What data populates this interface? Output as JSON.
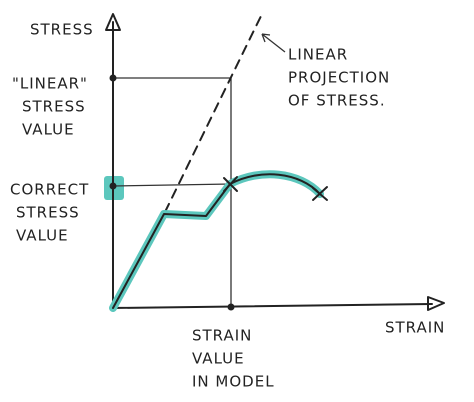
{
  "axes": {
    "y_label": "STRESS",
    "x_label": "STRAIN"
  },
  "labels": {
    "linear_stress": {
      "lines": [
        "\"LINEAR\"",
        "STRESS",
        "VALUE"
      ]
    },
    "correct_stress": {
      "lines": [
        "CORRECT",
        "STRESS",
        "VALUE"
      ]
    },
    "linear_projection": {
      "lines": [
        "LINEAR",
        "PROJECTION",
        "OF STRESS."
      ]
    },
    "strain_value": {
      "lines": [
        "STRAIN",
        "VALUE",
        "IN MODEL"
      ]
    }
  }
}
